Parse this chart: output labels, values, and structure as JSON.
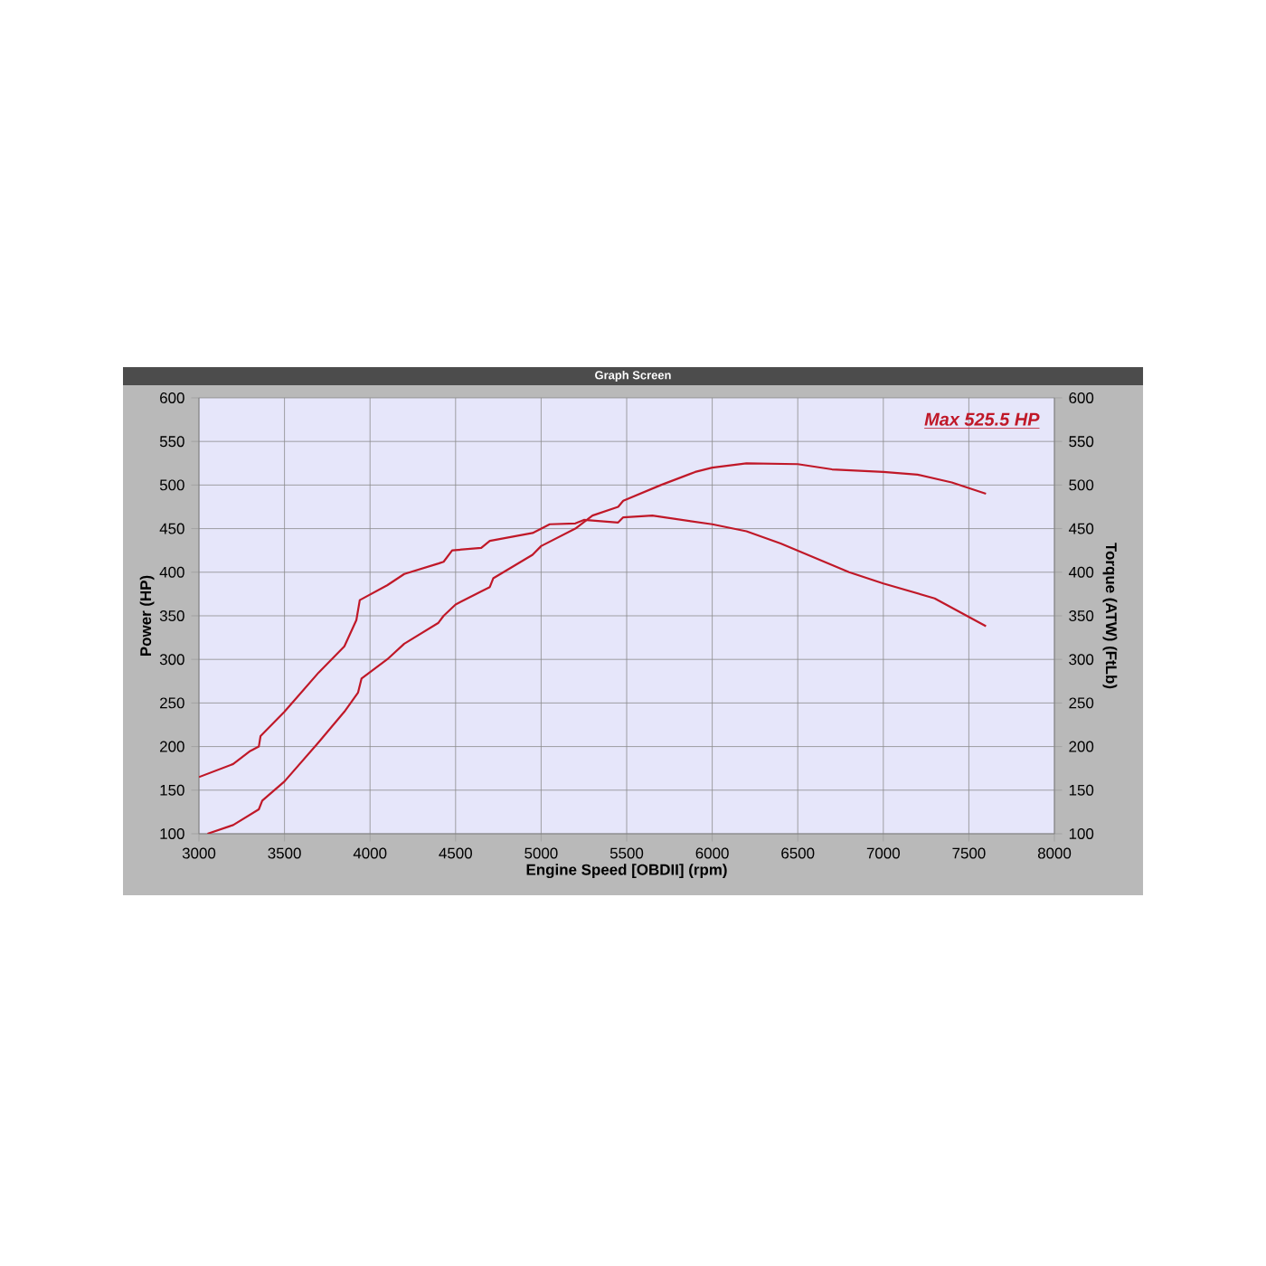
{
  "chart_data": {
    "type": "line",
    "title": "Graph Screen",
    "xlabel": "Engine Speed [OBDII] (rpm)",
    "ylabel": "Power (HP)",
    "y2label": "Torque (ATW) (FtLb)",
    "xlim": [
      3000,
      8000
    ],
    "ylim": [
      100,
      600
    ],
    "y2lim": [
      100,
      600
    ],
    "xticks": [
      3000,
      3500,
      4000,
      4500,
      5000,
      5500,
      6000,
      6500,
      7000,
      7500,
      8000
    ],
    "yticks": [
      100,
      150,
      200,
      250,
      300,
      350,
      400,
      450,
      500,
      550,
      600
    ],
    "y2ticks": [
      100,
      150,
      200,
      250,
      300,
      350,
      400,
      450,
      500,
      550,
      600
    ],
    "grid": true,
    "annotations": [
      "Max 525.5 HP"
    ],
    "series": [
      {
        "color": "#c01828",
        "x": [
          3050,
          3200,
          3350,
          3370,
          3500,
          3700,
          3850,
          3930,
          3950,
          4100,
          4200,
          4400,
          4430,
          4500,
          4650,
          4700,
          4720,
          4950,
          5000,
          5200,
          5300,
          5450,
          5480,
          5700,
          5900,
          6000,
          6200,
          6500,
          6700,
          7000,
          7200,
          7400,
          7600
        ],
        "values": [
          100,
          110,
          128,
          138,
          160,
          205,
          240,
          262,
          278,
          300,
          318,
          342,
          350,
          363,
          378,
          383,
          393,
          420,
          430,
          450,
          465,
          475,
          482,
          500,
          515,
          520,
          525,
          524,
          518,
          515,
          512,
          503,
          490
        ]
      },
      {
        "color": "#c01828",
        "axis": "y2",
        "x": [
          3000,
          3200,
          3300,
          3350,
          3360,
          3500,
          3700,
          3850,
          3920,
          3940,
          4100,
          4200,
          4400,
          4430,
          4480,
          4650,
          4700,
          4950,
          5050,
          5200,
          5250,
          5450,
          5480,
          5650,
          6000,
          6200,
          6400,
          6800,
          7000,
          7300,
          7600
        ],
        "values": [
          165,
          180,
          195,
          200,
          212,
          240,
          285,
          315,
          345,
          368,
          385,
          398,
          410,
          412,
          425,
          428,
          436,
          445,
          455,
          456,
          460,
          457,
          463,
          465,
          455,
          447,
          433,
          400,
          387,
          370,
          338
        ]
      }
    ]
  }
}
